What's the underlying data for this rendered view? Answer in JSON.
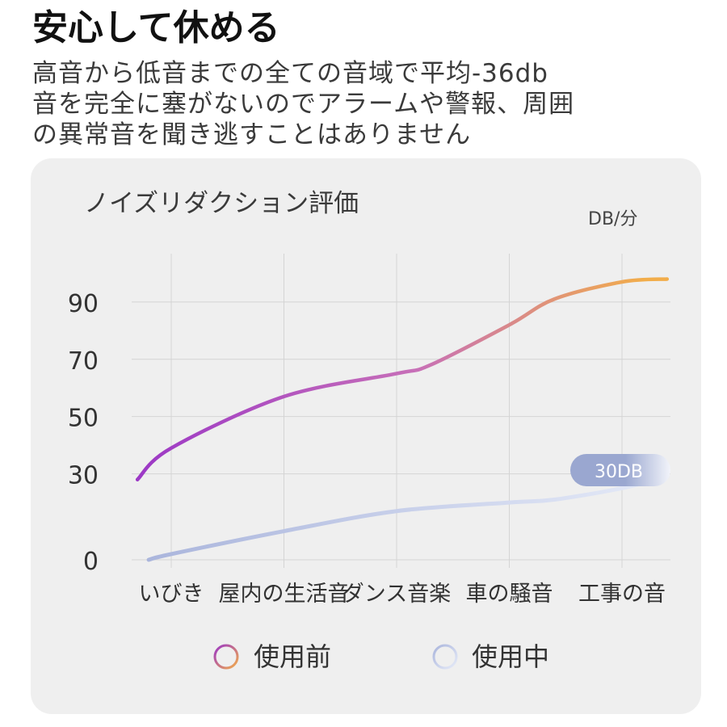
{
  "header": {
    "title": "安心して休める",
    "description_lines": [
      "高音から低音までの全ての音域で平均-36db",
      "音を完全に塞がないのでアラームや警報、周囲",
      "の異常音を聞き逃すことはありません"
    ]
  },
  "chart_data": {
    "type": "line",
    "title": "ノイズリダクション評価",
    "unit_label": "DB/分",
    "categories": [
      "いびき",
      "屋内の生活音",
      "ダンス音楽",
      "車の騒音",
      "工事の音"
    ],
    "y_ticks": [
      "90",
      "70",
      "50",
      "30",
      "0"
    ],
    "ylim": [
      0,
      100
    ],
    "grid": true,
    "series": [
      {
        "name": "使用前",
        "x": [
          -0.3,
          0,
          1,
          2,
          2.3,
          3,
          3.4,
          4,
          4.4
        ],
        "values": [
          28,
          39,
          57,
          65,
          68,
          82,
          91,
          97,
          98
        ]
      },
      {
        "name": "使用中",
        "x": [
          -0.2,
          0,
          1,
          2,
          3,
          3.4,
          4,
          4.4
        ],
        "values": [
          0,
          2,
          10,
          17,
          20,
          21,
          25,
          29
        ]
      }
    ],
    "annotation": "30DB",
    "legend_position": "bottom",
    "colors": {
      "before_start": "#9b37c6",
      "before_mid": "#c76fb8",
      "before_end": "#f2ad4a",
      "during_start": "#aab5dc",
      "during_end": "#e6ebf8",
      "grid": "#d4d4d4",
      "badge_bg": "#9aa7d0"
    }
  }
}
